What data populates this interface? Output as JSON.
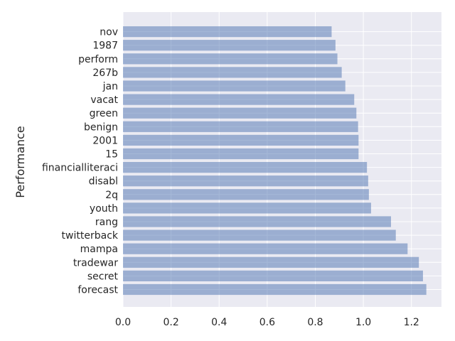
{
  "chart_data": {
    "type": "bar",
    "orientation": "horizontal",
    "categories": [
      "forecast",
      "secret",
      "tradewar",
      "mampa",
      "twitterback",
      "rang",
      "youth",
      "2q",
      "disabl",
      "financialliteraci",
      "15",
      "2001",
      "benign",
      "green",
      "vacat",
      "jan",
      "267b",
      "perform",
      "1987",
      "nov"
    ],
    "values": [
      1.262,
      1.248,
      1.231,
      1.184,
      1.135,
      1.115,
      1.032,
      1.023,
      1.02,
      1.015,
      0.98,
      0.98,
      0.978,
      0.971,
      0.962,
      0.925,
      0.91,
      0.892,
      0.884,
      0.868
    ],
    "xlabel": "",
    "ylabel": "Performance",
    "xlim": [
      0,
      1.3251
    ],
    "xticks": [
      0.0,
      0.2,
      0.4,
      0.6,
      0.8,
      1.0,
      1.2
    ],
    "xtick_labels": [
      "0.0",
      "0.2",
      "0.4",
      "0.6",
      "0.8",
      "1.0",
      "1.2"
    ],
    "grid": true,
    "bar_color": "#4c72b0",
    "bar_alpha": 0.5,
    "background_color": "#eaeaf2"
  }
}
